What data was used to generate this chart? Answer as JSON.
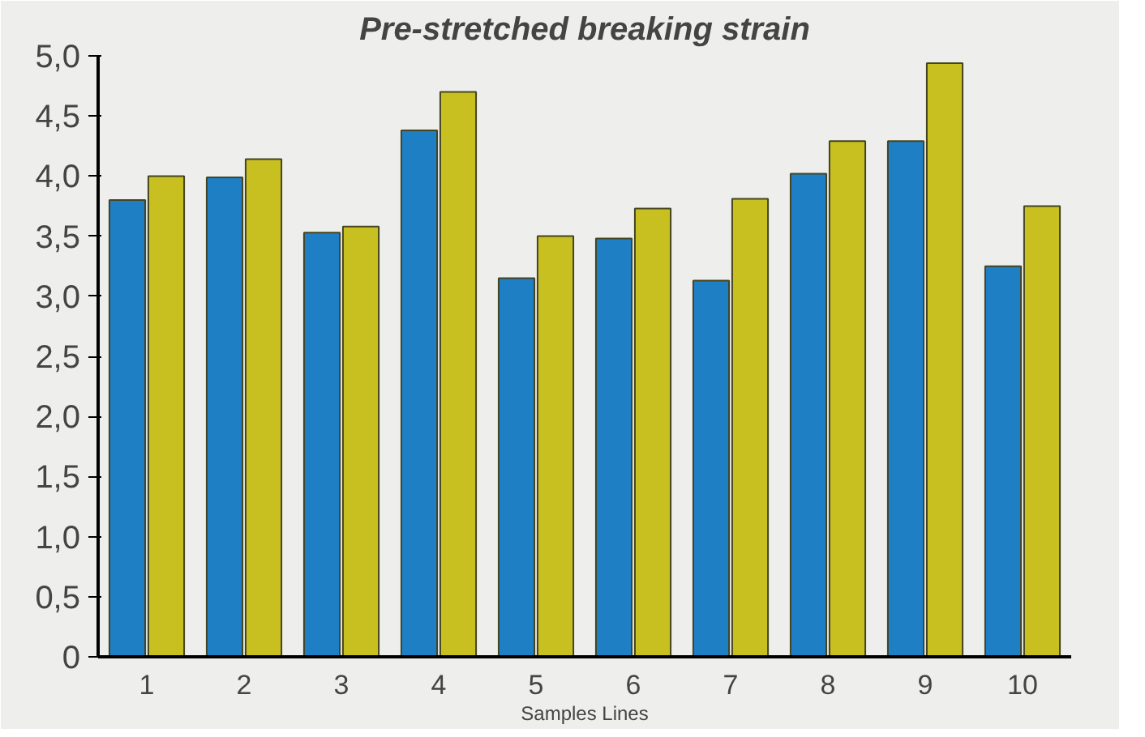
{
  "chart_data": {
    "type": "bar",
    "title": "Pre-stretched breaking strain",
    "xlabel": "Samples Lines",
    "categories": [
      "1",
      "2",
      "3",
      "4",
      "5",
      "6",
      "7",
      "8",
      "9",
      "10"
    ],
    "series": [
      {
        "color": "#1f7fc4",
        "values": [
          3.8,
          3.99,
          3.53,
          4.38,
          3.15,
          3.48,
          3.13,
          4.02,
          4.29,
          3.25
        ]
      },
      {
        "color": "#c8c020",
        "values": [
          4.0,
          4.14,
          3.58,
          4.7,
          3.5,
          3.73,
          3.81,
          4.29,
          4.94,
          3.75
        ]
      }
    ],
    "ylim": [
      0,
      5
    ],
    "yticks": [
      0,
      {
        "value": 0.5,
        "label": "0,5"
      },
      {
        "value": 1,
        "label": "1,0"
      },
      {
        "value": 1.5,
        "label": "1,5"
      },
      {
        "value": 2,
        "label": "2,0"
      },
      {
        "value": 2.5,
        "label": "2,5"
      },
      {
        "value": 3,
        "label": "3,0"
      },
      {
        "value": 3.5,
        "label": "3,5"
      },
      {
        "value": 4,
        "label": "4,0"
      },
      {
        "value": 4.5,
        "label": "4,5"
      },
      {
        "value": 5,
        "label": "5,0"
      }
    ],
    "grid": false
  }
}
